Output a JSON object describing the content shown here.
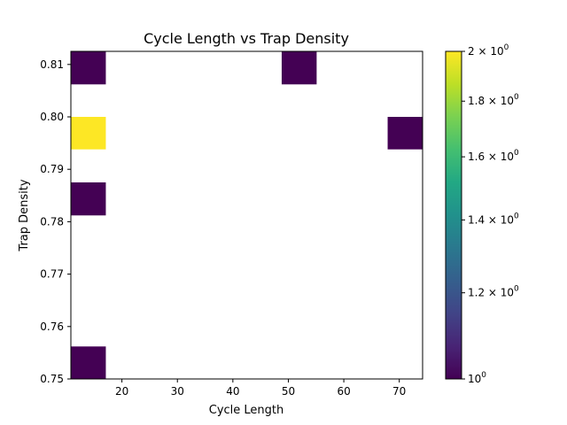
{
  "chart_data": {
    "type": "heatmap",
    "title": "Cycle Length vs Trap Density",
    "xlabel": "Cycle Length",
    "ylabel": "Trap Density",
    "xlim": [
      10.8,
      74.2
    ],
    "ylim": [
      0.75,
      0.8125
    ],
    "x_ticks": [
      {
        "value": 20,
        "label": "20"
      },
      {
        "value": 30,
        "label": "30"
      },
      {
        "value": 40,
        "label": "40"
      },
      {
        "value": 50,
        "label": "50"
      },
      {
        "value": 60,
        "label": "60"
      },
      {
        "value": 70,
        "label": "70"
      }
    ],
    "y_ticks": [
      {
        "value": 0.75,
        "label": "0.75"
      },
      {
        "value": 0.76,
        "label": "0.76"
      },
      {
        "value": 0.77,
        "label": "0.77"
      },
      {
        "value": 0.78,
        "label": "0.78"
      },
      {
        "value": 0.79,
        "label": "0.79"
      },
      {
        "value": 0.8,
        "label": "0.80"
      },
      {
        "value": 0.81,
        "label": "0.81"
      }
    ],
    "cells": [
      {
        "x0": 10.8,
        "x1": 17.1,
        "y0": 0.75,
        "y1": 0.7562,
        "count": 1
      },
      {
        "x0": 10.8,
        "x1": 17.1,
        "y0": 0.7812,
        "y1": 0.7875,
        "count": 1
      },
      {
        "x0": 10.8,
        "x1": 17.1,
        "y0": 0.7938,
        "y1": 0.8,
        "count": 2
      },
      {
        "x0": 10.8,
        "x1": 17.1,
        "y0": 0.8062,
        "y1": 0.8125,
        "count": 1
      },
      {
        "x0": 48.8,
        "x1": 55.1,
        "y0": 0.8062,
        "y1": 0.8125,
        "count": 1
      },
      {
        "x0": 67.9,
        "x1": 74.2,
        "y0": 0.7938,
        "y1": 0.8,
        "count": 1
      }
    ],
    "colorbar": {
      "scale": "log",
      "range": [
        1,
        2
      ],
      "colormap": "viridis",
      "ticks": [
        {
          "value": 1.0,
          "base": "10",
          "exp": "0",
          "mantissa": ""
        },
        {
          "value": 1.2,
          "base": "10",
          "exp": "0",
          "mantissa": "1.2 × "
        },
        {
          "value": 1.4,
          "base": "10",
          "exp": "0",
          "mantissa": "1.4 × "
        },
        {
          "value": 1.6,
          "base": "10",
          "exp": "0",
          "mantissa": "1.6 × "
        },
        {
          "value": 1.8,
          "base": "10",
          "exp": "0",
          "mantissa": "1.8 × "
        },
        {
          "value": 2.0,
          "base": "10",
          "exp": "0",
          "mantissa": "2 × "
        }
      ]
    },
    "grid": false,
    "colors": {
      "low": "#440154",
      "high": "#fde725"
    }
  }
}
